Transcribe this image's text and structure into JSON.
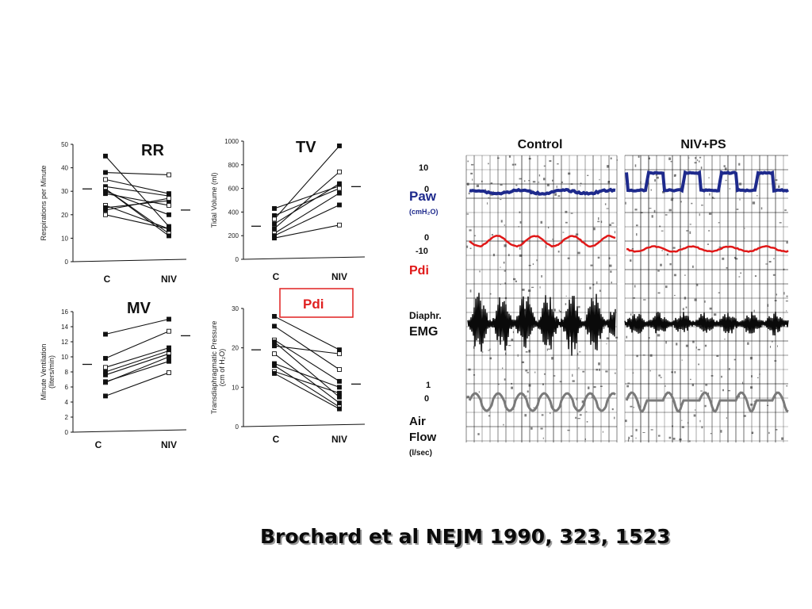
{
  "panels": [
    {
      "key": "rr",
      "title": "RR",
      "ylabel": "Respirations per Minute",
      "ylim": [
        0,
        50
      ],
      "yticks": [
        0,
        10,
        20,
        30,
        40,
        50
      ],
      "categories": [
        "C",
        "NIV"
      ],
      "mean": [
        31,
        22
      ],
      "pairs": [
        [
          45,
          15
        ],
        [
          38,
          37
        ],
        [
          35,
          29
        ],
        [
          32,
          28
        ],
        [
          31,
          12
        ],
        [
          31,
          11
        ],
        [
          30,
          20
        ],
        [
          29,
          24
        ],
        [
          24,
          14
        ],
        [
          23,
          26
        ],
        [
          22,
          27
        ],
        [
          20,
          14
        ]
      ]
    },
    {
      "key": "tv",
      "title": "TV",
      "ylabel": "Tidal Volume (ml)",
      "ylim": [
        0,
        1000
      ],
      "yticks": [
        0,
        200,
        400,
        600,
        800,
        1000
      ],
      "categories": [
        "C",
        "NIV"
      ],
      "mean": [
        280,
        615
      ],
      "pairs": [
        [
          430,
          620
        ],
        [
          370,
          600
        ],
        [
          340,
          960
        ],
        [
          300,
          640
        ],
        [
          260,
          740
        ],
        [
          220,
          560
        ],
        [
          200,
          460
        ],
        [
          180,
          290
        ]
      ]
    },
    {
      "key": "mv",
      "title": "MV",
      "ylabel": "Minute Ventilation",
      "ylabel_sub": "(liters/min)",
      "ylim": [
        0,
        16
      ],
      "yticks": [
        0,
        2,
        4,
        6,
        8,
        10,
        12,
        14,
        16
      ],
      "categories": [
        "C",
        "NIV"
      ],
      "mean": [
        9,
        12.8
      ],
      "pairs": [
        [
          13,
          15
        ],
        [
          9.8,
          13.4
        ],
        [
          8.6,
          11.2
        ],
        [
          8.0,
          10.8
        ],
        [
          7.6,
          10.4
        ],
        [
          6.6,
          10.0
        ],
        [
          6.7,
          9.4
        ],
        [
          4.8,
          7.9
        ]
      ]
    },
    {
      "key": "pdi",
      "title": "Pdi",
      "ylabel": "Transdiaphragmatic Pressure",
      "ylabel_sub": "(cm of H₂O)",
      "ylim": [
        0,
        30
      ],
      "yticks": [
        0,
        10,
        20,
        30
      ],
      "categories": [
        "C",
        "NIV"
      ],
      "mean": [
        19.5,
        10.8
      ],
      "pairs": [
        [
          28,
          19.5
        ],
        [
          25.5,
          14.5
        ],
        [
          22,
          11.5
        ],
        [
          21.5,
          7.5
        ],
        [
          20.5,
          18.5
        ],
        [
          18.5,
          6.0
        ],
        [
          16,
          10.0
        ],
        [
          15.5,
          5.0
        ],
        [
          14,
          8.5
        ],
        [
          13.5,
          4.5
        ]
      ]
    }
  ],
  "tracings": {
    "col_control": "Control",
    "col_niv": "NIV+PS",
    "paw": {
      "label": "Paw",
      "unit": "(cmH₂O)",
      "tick_top": "10",
      "tick_bottom": "0",
      "color": "#1e2a8c"
    },
    "pdi": {
      "label": "Pdi",
      "tick_top": "0",
      "tick_bottom": "-10",
      "color": "#e01818"
    },
    "emg": {
      "label": "Diaphr.",
      "label2": "EMG",
      "color": "#0a0a0a"
    },
    "flow": {
      "label": "Air",
      "label2": "Flow",
      "unit": "(l/sec)",
      "tick_top": "1",
      "tick_bottom": "0",
      "color": "#7a7a7a"
    }
  },
  "citation": "Brochard et al NEJM 1990, 323, 1523"
}
